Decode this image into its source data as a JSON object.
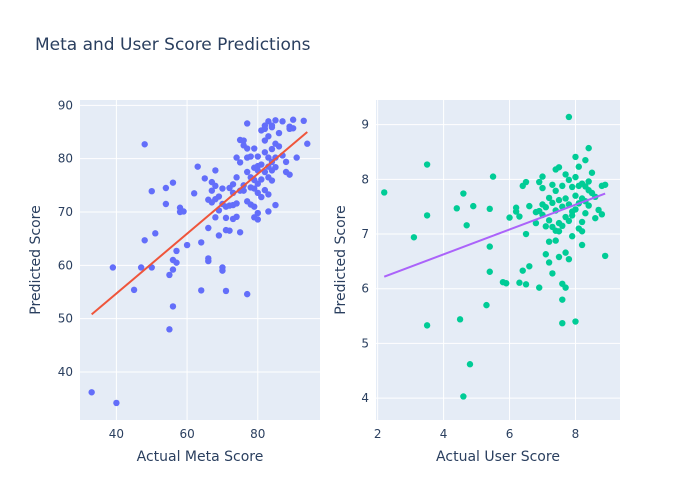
{
  "chart_data": {
    "title": "Meta and User Score Predictions",
    "plots": [
      {
        "type": "scatter",
        "xlabel": "Actual Meta Score",
        "ylabel": "Predicted Score",
        "xlim": [
          29.7,
          97.6
        ],
        "ylim": [
          31,
          91
        ],
        "xticks": [
          40,
          60,
          80
        ],
        "yticks": [
          40,
          50,
          60,
          70,
          80,
          90
        ],
        "point_color": "#636efa",
        "line_color": "#ef553b",
        "fit_line": [
          [
            33,
            50.8
          ],
          [
            94,
            85.0
          ]
        ],
        "points": [
          [
            33,
            36.2
          ],
          [
            40,
            34.2
          ],
          [
            39,
            59.6
          ],
          [
            45,
            55.4
          ],
          [
            47,
            59.6
          ],
          [
            48,
            64.7
          ],
          [
            48,
            82.7
          ],
          [
            50,
            59.6
          ],
          [
            50,
            73.9
          ],
          [
            51,
            66.0
          ],
          [
            54,
            74.5
          ],
          [
            54,
            71.5
          ],
          [
            55,
            48.0
          ],
          [
            55,
            58.2
          ],
          [
            56,
            52.3
          ],
          [
            56,
            59.2
          ],
          [
            56,
            61.0
          ],
          [
            56,
            75.5
          ],
          [
            57,
            60.5
          ],
          [
            57,
            62.7
          ],
          [
            58,
            70.0
          ],
          [
            58,
            70.8
          ],
          [
            59,
            70.1
          ],
          [
            60,
            63.8
          ],
          [
            62,
            73.5
          ],
          [
            63,
            78.5
          ],
          [
            64,
            55.3
          ],
          [
            64,
            64.3
          ],
          [
            65,
            76.3
          ],
          [
            66,
            61.3
          ],
          [
            66,
            60.8
          ],
          [
            66,
            67.0
          ],
          [
            67,
            71.8
          ],
          [
            67,
            74.0
          ],
          [
            67,
            75.6
          ],
          [
            68,
            72.4
          ],
          [
            68,
            74.9
          ],
          [
            68,
            77.8
          ],
          [
            69,
            72.9
          ],
          [
            69,
            70.3
          ],
          [
            69,
            65.6
          ],
          [
            70,
            59.6
          ],
          [
            70,
            59.0
          ],
          [
            70,
            71.5
          ],
          [
            70,
            74.4
          ],
          [
            71,
            71.0
          ],
          [
            71,
            55.2
          ],
          [
            71,
            66.6
          ],
          [
            71,
            68.9
          ],
          [
            72,
            74.5
          ],
          [
            72,
            71.2
          ],
          [
            72,
            66.5
          ],
          [
            73,
            75.2
          ],
          [
            73,
            71.3
          ],
          [
            73,
            68.7
          ],
          [
            74,
            80.2
          ],
          [
            74,
            76.5
          ],
          [
            74,
            71.6
          ],
          [
            74,
            69.1
          ],
          [
            75,
            83.5
          ],
          [
            75,
            79.3
          ],
          [
            75,
            74.0
          ],
          [
            75,
            66.2
          ],
          [
            76,
            82.5
          ],
          [
            76,
            83.4
          ],
          [
            76,
            74.0
          ],
          [
            77,
            86.6
          ],
          [
            77,
            81.9
          ],
          [
            77,
            77.5
          ],
          [
            77,
            80.2
          ],
          [
            77,
            72.0
          ],
          [
            77,
            54.6
          ],
          [
            78,
            80.4
          ],
          [
            78,
            76.5
          ],
          [
            78,
            74.6
          ],
          [
            78,
            71.4
          ],
          [
            79,
            81.9
          ],
          [
            79,
            78.3
          ],
          [
            79,
            76.0
          ],
          [
            79,
            74.4
          ],
          [
            79,
            71.0
          ],
          [
            79,
            69.0
          ],
          [
            80,
            80.4
          ],
          [
            80,
            78.6
          ],
          [
            80,
            77.8
          ],
          [
            80,
            73.6
          ],
          [
            80,
            69.8
          ],
          [
            80,
            68.6
          ],
          [
            81,
            85.3
          ],
          [
            81,
            78.9
          ],
          [
            81,
            76.1
          ],
          [
            81,
            72.8
          ],
          [
            82,
            86.2
          ],
          [
            82,
            85.6
          ],
          [
            82,
            83.4
          ],
          [
            82,
            81.2
          ],
          [
            82,
            77.5
          ],
          [
            82,
            74.1
          ],
          [
            83,
            87.0
          ],
          [
            83,
            84.2
          ],
          [
            83,
            80.2
          ],
          [
            83,
            78.5
          ],
          [
            83,
            73.3
          ],
          [
            83,
            70.1
          ],
          [
            84,
            86.2
          ],
          [
            84,
            85.9
          ],
          [
            84,
            81.8
          ],
          [
            84,
            79.4
          ],
          [
            84,
            77.8
          ],
          [
            84,
            75.9
          ],
          [
            85,
            87.2
          ],
          [
            85,
            82.8
          ],
          [
            85,
            80.2
          ],
          [
            85,
            78.4
          ],
          [
            85,
            71.3
          ],
          [
            86,
            84.8
          ],
          [
            86,
            82.3
          ],
          [
            87,
            87.0
          ],
          [
            87,
            80.6
          ],
          [
            88,
            79.4
          ],
          [
            88,
            77.5
          ],
          [
            89,
            86.0
          ],
          [
            89,
            85.6
          ],
          [
            89,
            77.0
          ],
          [
            90,
            85.7
          ],
          [
            90,
            87.3
          ],
          [
            91,
            80.2
          ],
          [
            93,
            87.1
          ],
          [
            94,
            82.8
          ],
          [
            66,
            72.3
          ],
          [
            68,
            69.0
          ],
          [
            73,
            73.6
          ],
          [
            76,
            75.0
          ],
          [
            80,
            75.3
          ],
          [
            83,
            76.5
          ]
        ]
      },
      {
        "type": "scatter",
        "xlabel": "Actual User Score",
        "ylabel": "Predicted Score",
        "xlim": [
          1.95,
          9.35
        ],
        "ylim": [
          3.6,
          9.45
        ],
        "xticks": [
          2,
          4,
          6,
          8
        ],
        "yticks": [
          4,
          5,
          6,
          7,
          8,
          9
        ],
        "point_color": "#00cc96",
        "line_color": "#ab63fa",
        "fit_line": [
          [
            2.2,
            6.22
          ],
          [
            8.9,
            7.74
          ]
        ],
        "points": [
          [
            2.2,
            7.76
          ],
          [
            3.1,
            6.94
          ],
          [
            3.5,
            8.27
          ],
          [
            3.5,
            7.34
          ],
          [
            3.5,
            5.33
          ],
          [
            4.4,
            7.47
          ],
          [
            4.5,
            5.44
          ],
          [
            4.6,
            7.74
          ],
          [
            4.6,
            4.03
          ],
          [
            4.7,
            7.16
          ],
          [
            4.8,
            4.62
          ],
          [
            4.9,
            7.51
          ],
          [
            5.3,
            5.7
          ],
          [
            5.4,
            7.46
          ],
          [
            5.4,
            6.77
          ],
          [
            5.4,
            6.31
          ],
          [
            5.5,
            8.05
          ],
          [
            5.8,
            6.12
          ],
          [
            5.9,
            6.1
          ],
          [
            6.2,
            7.48
          ],
          [
            6.2,
            7.41
          ],
          [
            6.3,
            7.32
          ],
          [
            6.3,
            6.11
          ],
          [
            6.4,
            7.88
          ],
          [
            6.4,
            6.33
          ],
          [
            6.5,
            7.95
          ],
          [
            6.5,
            7.0
          ],
          [
            6.5,
            6.08
          ],
          [
            6.6,
            7.51
          ],
          [
            6.6,
            6.41
          ],
          [
            6.8,
            7.4
          ],
          [
            6.9,
            7.95
          ],
          [
            6.9,
            7.42
          ],
          [
            6.9,
            6.02
          ],
          [
            7.0,
            7.84
          ],
          [
            7.0,
            7.54
          ],
          [
            7.0,
            7.35
          ],
          [
            7.1,
            7.49
          ],
          [
            7.1,
            7.14
          ],
          [
            7.1,
            6.63
          ],
          [
            7.2,
            7.66
          ],
          [
            7.2,
            7.25
          ],
          [
            7.2,
            6.86
          ],
          [
            7.2,
            6.48
          ],
          [
            7.3,
            7.9
          ],
          [
            7.3,
            7.57
          ],
          [
            7.3,
            7.13
          ],
          [
            7.3,
            6.28
          ],
          [
            7.4,
            8.18
          ],
          [
            7.4,
            7.79
          ],
          [
            7.4,
            7.43
          ],
          [
            7.4,
            7.06
          ],
          [
            7.4,
            6.88
          ],
          [
            7.5,
            8.22
          ],
          [
            7.5,
            7.62
          ],
          [
            7.5,
            7.2
          ],
          [
            7.5,
            7.05
          ],
          [
            7.5,
            6.58
          ],
          [
            7.6,
            7.88
          ],
          [
            7.6,
            7.5
          ],
          [
            7.6,
            7.15
          ],
          [
            7.6,
            6.09
          ],
          [
            7.6,
            5.8
          ],
          [
            7.6,
            5.37
          ],
          [
            7.7,
            8.09
          ],
          [
            7.7,
            7.65
          ],
          [
            7.7,
            7.31
          ],
          [
            7.7,
            6.02
          ],
          [
            7.8,
            9.14
          ],
          [
            7.8,
            7.99
          ],
          [
            7.8,
            7.54
          ],
          [
            7.8,
            7.24
          ],
          [
            7.9,
            7.86
          ],
          [
            7.9,
            7.41
          ],
          [
            7.9,
            6.96
          ],
          [
            8.0,
            8.41
          ],
          [
            8.0,
            8.04
          ],
          [
            8.0,
            7.7
          ],
          [
            8.0,
            7.45
          ],
          [
            8.0,
            5.4
          ],
          [
            8.1,
            8.23
          ],
          [
            8.1,
            7.88
          ],
          [
            8.1,
            7.56
          ],
          [
            8.1,
            7.1
          ],
          [
            8.2,
            7.92
          ],
          [
            8.2,
            7.65
          ],
          [
            8.2,
            7.22
          ],
          [
            8.2,
            6.8
          ],
          [
            8.3,
            8.35
          ],
          [
            8.3,
            7.87
          ],
          [
            8.3,
            7.6
          ],
          [
            8.3,
            7.38
          ],
          [
            8.4,
            8.57
          ],
          [
            8.4,
            7.96
          ],
          [
            8.4,
            7.8
          ],
          [
            8.4,
            7.52
          ],
          [
            8.5,
            8.12
          ],
          [
            8.5,
            7.75
          ],
          [
            8.6,
            7.68
          ],
          [
            8.6,
            7.29
          ],
          [
            8.7,
            7.44
          ],
          [
            8.8,
            7.88
          ],
          [
            8.8,
            7.36
          ],
          [
            8.9,
            7.9
          ],
          [
            8.9,
            6.6
          ],
          [
            7.8,
            6.54
          ],
          [
            6.8,
            7.2
          ],
          [
            7.0,
            8.05
          ],
          [
            7.9,
            7.34
          ],
          [
            8.2,
            7.05
          ],
          [
            6.0,
            7.3
          ],
          [
            7.7,
            6.66
          ]
        ]
      }
    ]
  }
}
